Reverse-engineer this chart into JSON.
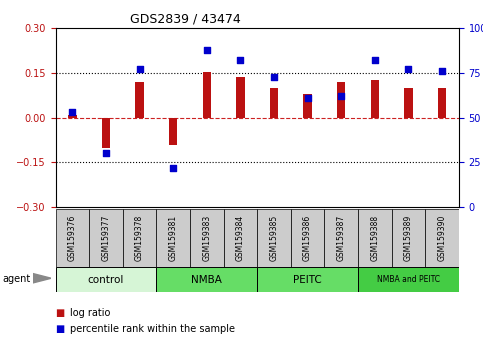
{
  "title": "GDS2839 / 43474",
  "samples": [
    "GSM159376",
    "GSM159377",
    "GSM159378",
    "GSM159381",
    "GSM159383",
    "GSM159384",
    "GSM159385",
    "GSM159386",
    "GSM159387",
    "GSM159388",
    "GSM159389",
    "GSM159390"
  ],
  "log_ratio": [
    0.01,
    -0.1,
    0.12,
    -0.09,
    0.155,
    0.135,
    0.1,
    0.08,
    0.12,
    0.125,
    0.1,
    0.1
  ],
  "percentile_rank": [
    53,
    30,
    77,
    22,
    88,
    82,
    73,
    61,
    62,
    82,
    77,
    76
  ],
  "groups": [
    {
      "label": "control",
      "start": 0,
      "end": 3,
      "color": "#d6f5d6"
    },
    {
      "label": "NMBA",
      "start": 3,
      "end": 6,
      "color": "#66dd66"
    },
    {
      "label": "PEITC",
      "start": 6,
      "end": 9,
      "color": "#66dd66"
    },
    {
      "label": "NMBA and PEITC",
      "start": 9,
      "end": 12,
      "color": "#44cc44"
    }
  ],
  "ylim_left": [
    -0.3,
    0.3
  ],
  "ylim_right": [
    0,
    100
  ],
  "yticks_left": [
    -0.3,
    -0.15,
    0,
    0.15,
    0.3
  ],
  "yticks_right": [
    0,
    25,
    50,
    75,
    100
  ],
  "bar_color": "#bb1111",
  "dot_color": "#0000cc",
  "background_color": "#ffffff",
  "zero_line_color": "#cc2222",
  "dotted_line_color": "#000000",
  "sample_box_color": "#cccccc"
}
